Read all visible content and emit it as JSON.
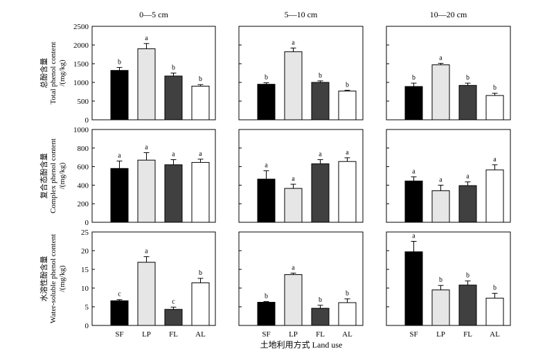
{
  "chart_data": {
    "type": "bar",
    "categories": [
      "SF",
      "LP",
      "FL",
      "AL"
    ],
    "bar_colors": [
      "#000000",
      "#e6e6e6",
      "#404040",
      "#ffffff"
    ],
    "columns": [
      "0—5 cm",
      "5—10 cm",
      "10—20 cm"
    ],
    "xlabel": "土地利用方式 Land use",
    "rows": [
      {
        "ylabel_cn": "总酚含量",
        "ylabel_en": "Total phenol content",
        "ylabel_unit": "/(mg/kg)",
        "ylim": [
          0,
          2500
        ],
        "yticks": [
          "0",
          "500",
          "1000",
          "1500",
          "2000",
          "2500"
        ],
        "panels": [
          {
            "values": [
              1320,
              1900,
              1170,
              900
            ],
            "errors": [
              80,
              140,
              80,
              40
            ],
            "letters": [
              "b",
              "a",
              "b",
              "b"
            ]
          },
          {
            "values": [
              950,
              1820,
              1000,
              770
            ],
            "errors": [
              40,
              100,
              40,
              20
            ],
            "letters": [
              "b",
              "a",
              "b",
              "b"
            ]
          },
          {
            "values": [
              890,
              1470,
              920,
              650
            ],
            "errors": [
              90,
              40,
              60,
              60
            ],
            "letters": [
              "b",
              "a",
              "b",
              "b"
            ]
          }
        ]
      },
      {
        "ylabel_cn": "复合态酚含量",
        "ylabel_en": "Complex phenol content",
        "ylabel_unit": "/(mg/kg)",
        "ylim": [
          0,
          1000
        ],
        "yticks": [
          "0",
          "200",
          "400",
          "600",
          "800",
          "1000"
        ],
        "panels": [
          {
            "values": [
              580,
              670,
              620,
              645
            ],
            "errors": [
              80,
              80,
              55,
              35
            ],
            "letters": [
              "a",
              "a",
              "a",
              "a"
            ]
          },
          {
            "values": [
              465,
              365,
              630,
              655
            ],
            "errors": [
              90,
              45,
              45,
              40
            ],
            "letters": [
              "a",
              "a",
              "a",
              "a"
            ]
          },
          {
            "values": [
              445,
              340,
              395,
              565
            ],
            "errors": [
              45,
              60,
              40,
              55
            ],
            "letters": [
              "a",
              "a",
              "a",
              "a"
            ]
          }
        ]
      },
      {
        "ylabel_cn": "水溶性酚含量",
        "ylabel_en": "Water-soluble phenol content",
        "ylabel_unit": "/(mg/kg)",
        "ylim": [
          0,
          25
        ],
        "yticks": [
          "0",
          "5",
          "10",
          "15",
          "20",
          "25"
        ],
        "panels": [
          {
            "values": [
              6.6,
              16.9,
              4.3,
              11.4
            ],
            "errors": [
              0.3,
              1.5,
              0.6,
              1.2
            ],
            "letters": [
              "c",
              "a",
              "c",
              "b"
            ]
          },
          {
            "values": [
              6.2,
              13.6,
              4.6,
              6.1
            ],
            "errors": [
              0.2,
              0.4,
              0.8,
              1.0
            ],
            "letters": [
              "b",
              "a",
              "b",
              "b"
            ]
          },
          {
            "values": [
              19.7,
              9.5,
              10.8,
              7.3
            ],
            "errors": [
              2.8,
              1.2,
              1.1,
              1.3
            ],
            "letters": [
              "a",
              "b",
              "b",
              "b"
            ]
          }
        ]
      }
    ]
  }
}
